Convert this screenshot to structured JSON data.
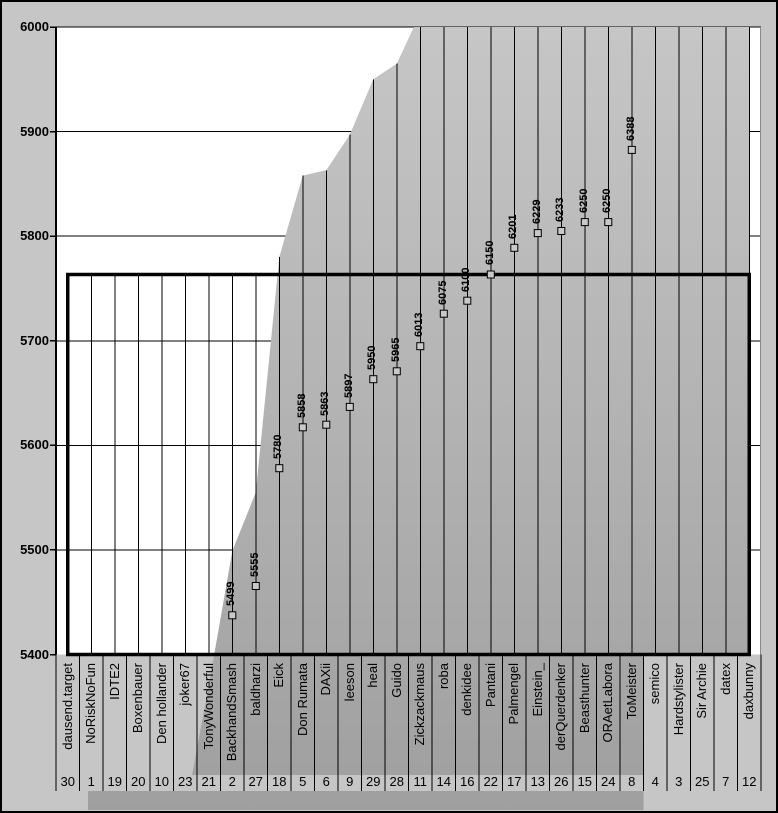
{
  "chart_data": {
    "type": "area",
    "title": "",
    "legend": "none",
    "grid": "horizontal",
    "y_axis": {
      "min": 5400,
      "max": 6000,
      "tick_interval": 100,
      "tick_labels": [
        "6000",
        "5900",
        "5800",
        "5700",
        "5600",
        "5500",
        "5400"
      ]
    },
    "categories": [
      "dausend.target",
      "NoRiskNoFun",
      "IDTE2",
      "Boxenbauer",
      "Den hollander",
      "joker67",
      "TonyWonderful",
      "BackhandSmash",
      "baldharzi",
      "Eick",
      "Don Rumata",
      "DAXii",
      "leeson",
      "heal",
      "Guido",
      "Zickzackmaus",
      "roba",
      "denkidee",
      "Pantani",
      "Palmengel",
      "Einstein_",
      "derQuerdenker",
      "Beasthunter",
      "ORAetLabora",
      "ToMeister",
      "semico",
      "Hardstylister",
      "Sir Archie",
      "datex",
      "daxbunny"
    ],
    "ranks": [
      "30",
      "1",
      "19",
      "20",
      "10",
      "23",
      "21",
      "2",
      "27",
      "18",
      "5",
      "6",
      "9",
      "29",
      "28",
      "11",
      "14",
      "16",
      "22",
      "17",
      "13",
      "26",
      "15",
      "24",
      "8",
      "4",
      "3",
      "25",
      "7",
      "12"
    ],
    "series": [
      {
        "name": "guesses",
        "marker": "square",
        "values": [
          null,
          null,
          null,
          null,
          null,
          null,
          null,
          5499,
          5555,
          5780,
          5858,
          5863,
          5897,
          5950,
          5965,
          6013,
          6075,
          6100,
          6150,
          6201,
          6229,
          6233,
          6250,
          6250,
          6388,
          null,
          null,
          null,
          null,
          null
        ]
      }
    ],
    "target_box": {
      "style": "thick-black-rectangle",
      "top_value_marker_scale": 6150,
      "top_value_left_axis": 5763,
      "bottom_value": 5400,
      "spans_categories": [
        1,
        30
      ]
    }
  },
  "render_estimates": {
    "note": "off-scale silhouette values used only to draw the gray area shape; not labeled in the image",
    "area_profile_values": [
      null,
      null,
      null,
      null,
      null,
      5250,
      5370,
      5499,
      5555,
      5780,
      5858,
      5863,
      5897,
      5950,
      5965,
      6013,
      6075,
      6100,
      6150,
      6201,
      6229,
      6233,
      6250,
      6250,
      6388,
      6700,
      6700,
      6700,
      6700,
      6700
    ]
  },
  "colors": {
    "chart_background": "#c6c6c6",
    "plot_background": "#ffffff",
    "area_fill_top": "#c6c6c6",
    "area_fill_bottom": "#9f9f9f",
    "line": "#000000",
    "plot_border_right": "#8a8a8a",
    "marker_fill": "#c9c9c9",
    "target_box_border": "#000000"
  }
}
